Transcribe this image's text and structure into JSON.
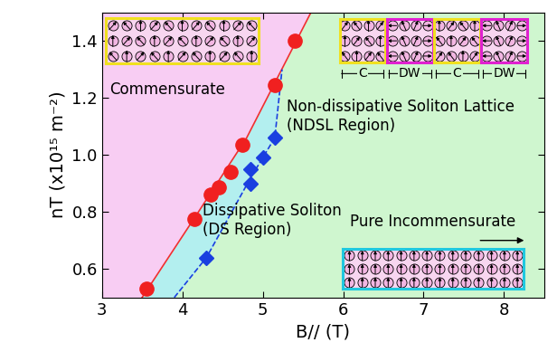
{
  "chart_data": {
    "type": "scatter",
    "x_label": "B// (T)",
    "y_label": "nT (x10¹⁵ m⁻²)",
    "xlim": [
      3,
      8.5
    ],
    "ylim": [
      0.5,
      1.5
    ],
    "xticks": [
      3,
      4,
      5,
      6,
      7,
      8
    ],
    "yticks": [
      0.6,
      0.8,
      {
        "value": 1.0,
        "label": "1.0"
      },
      1.2,
      1.4
    ],
    "series": [
      {
        "type": "line",
        "color": "#f03030",
        "line_style": "solid",
        "x": [
          3.5,
          4.2,
          4.8,
          5.6
        ],
        "values": [
          0.5,
          0.8,
          1.06,
          1.5
        ]
      },
      {
        "type": "line",
        "color": "#1a3fe0",
        "line_style": "dashed",
        "x": [
          3.9,
          4.3,
          4.85,
          5.15,
          5.24
        ],
        "values": [
          0.5,
          0.64,
          0.92,
          1.06,
          1.3
        ]
      },
      {
        "type": "scatter",
        "color": "#f02020",
        "marker": "circle",
        "x": [
          3.55,
          4.15,
          4.35,
          4.45,
          4.6,
          4.75,
          5.15,
          5.4
        ],
        "values": [
          0.53,
          0.775,
          0.86,
          0.885,
          0.94,
          1.035,
          1.245,
          1.4
        ]
      },
      {
        "type": "scatter",
        "color": "#1a3fe0",
        "marker": "diamond",
        "x": [
          4.3,
          4.85,
          4.85,
          5.0,
          5.15
        ],
        "values": [
          0.64,
          0.9,
          0.95,
          0.99,
          1.06
        ]
      }
    ],
    "regions": [
      {
        "label": "Commensurate",
        "color": "#f8cdf3"
      },
      {
        "label": "Dissipative Soliton\n(DS Region)",
        "color": "#b3efef"
      },
      {
        "label": "Non-dissipative Soliton Lattice\n(NDSL Region)",
        "color": "#cff6cf"
      }
    ],
    "annotations": [
      "Pure Incommensurate"
    ],
    "domain_labels": [
      "C",
      "DW",
      "C",
      "DW"
    ]
  }
}
